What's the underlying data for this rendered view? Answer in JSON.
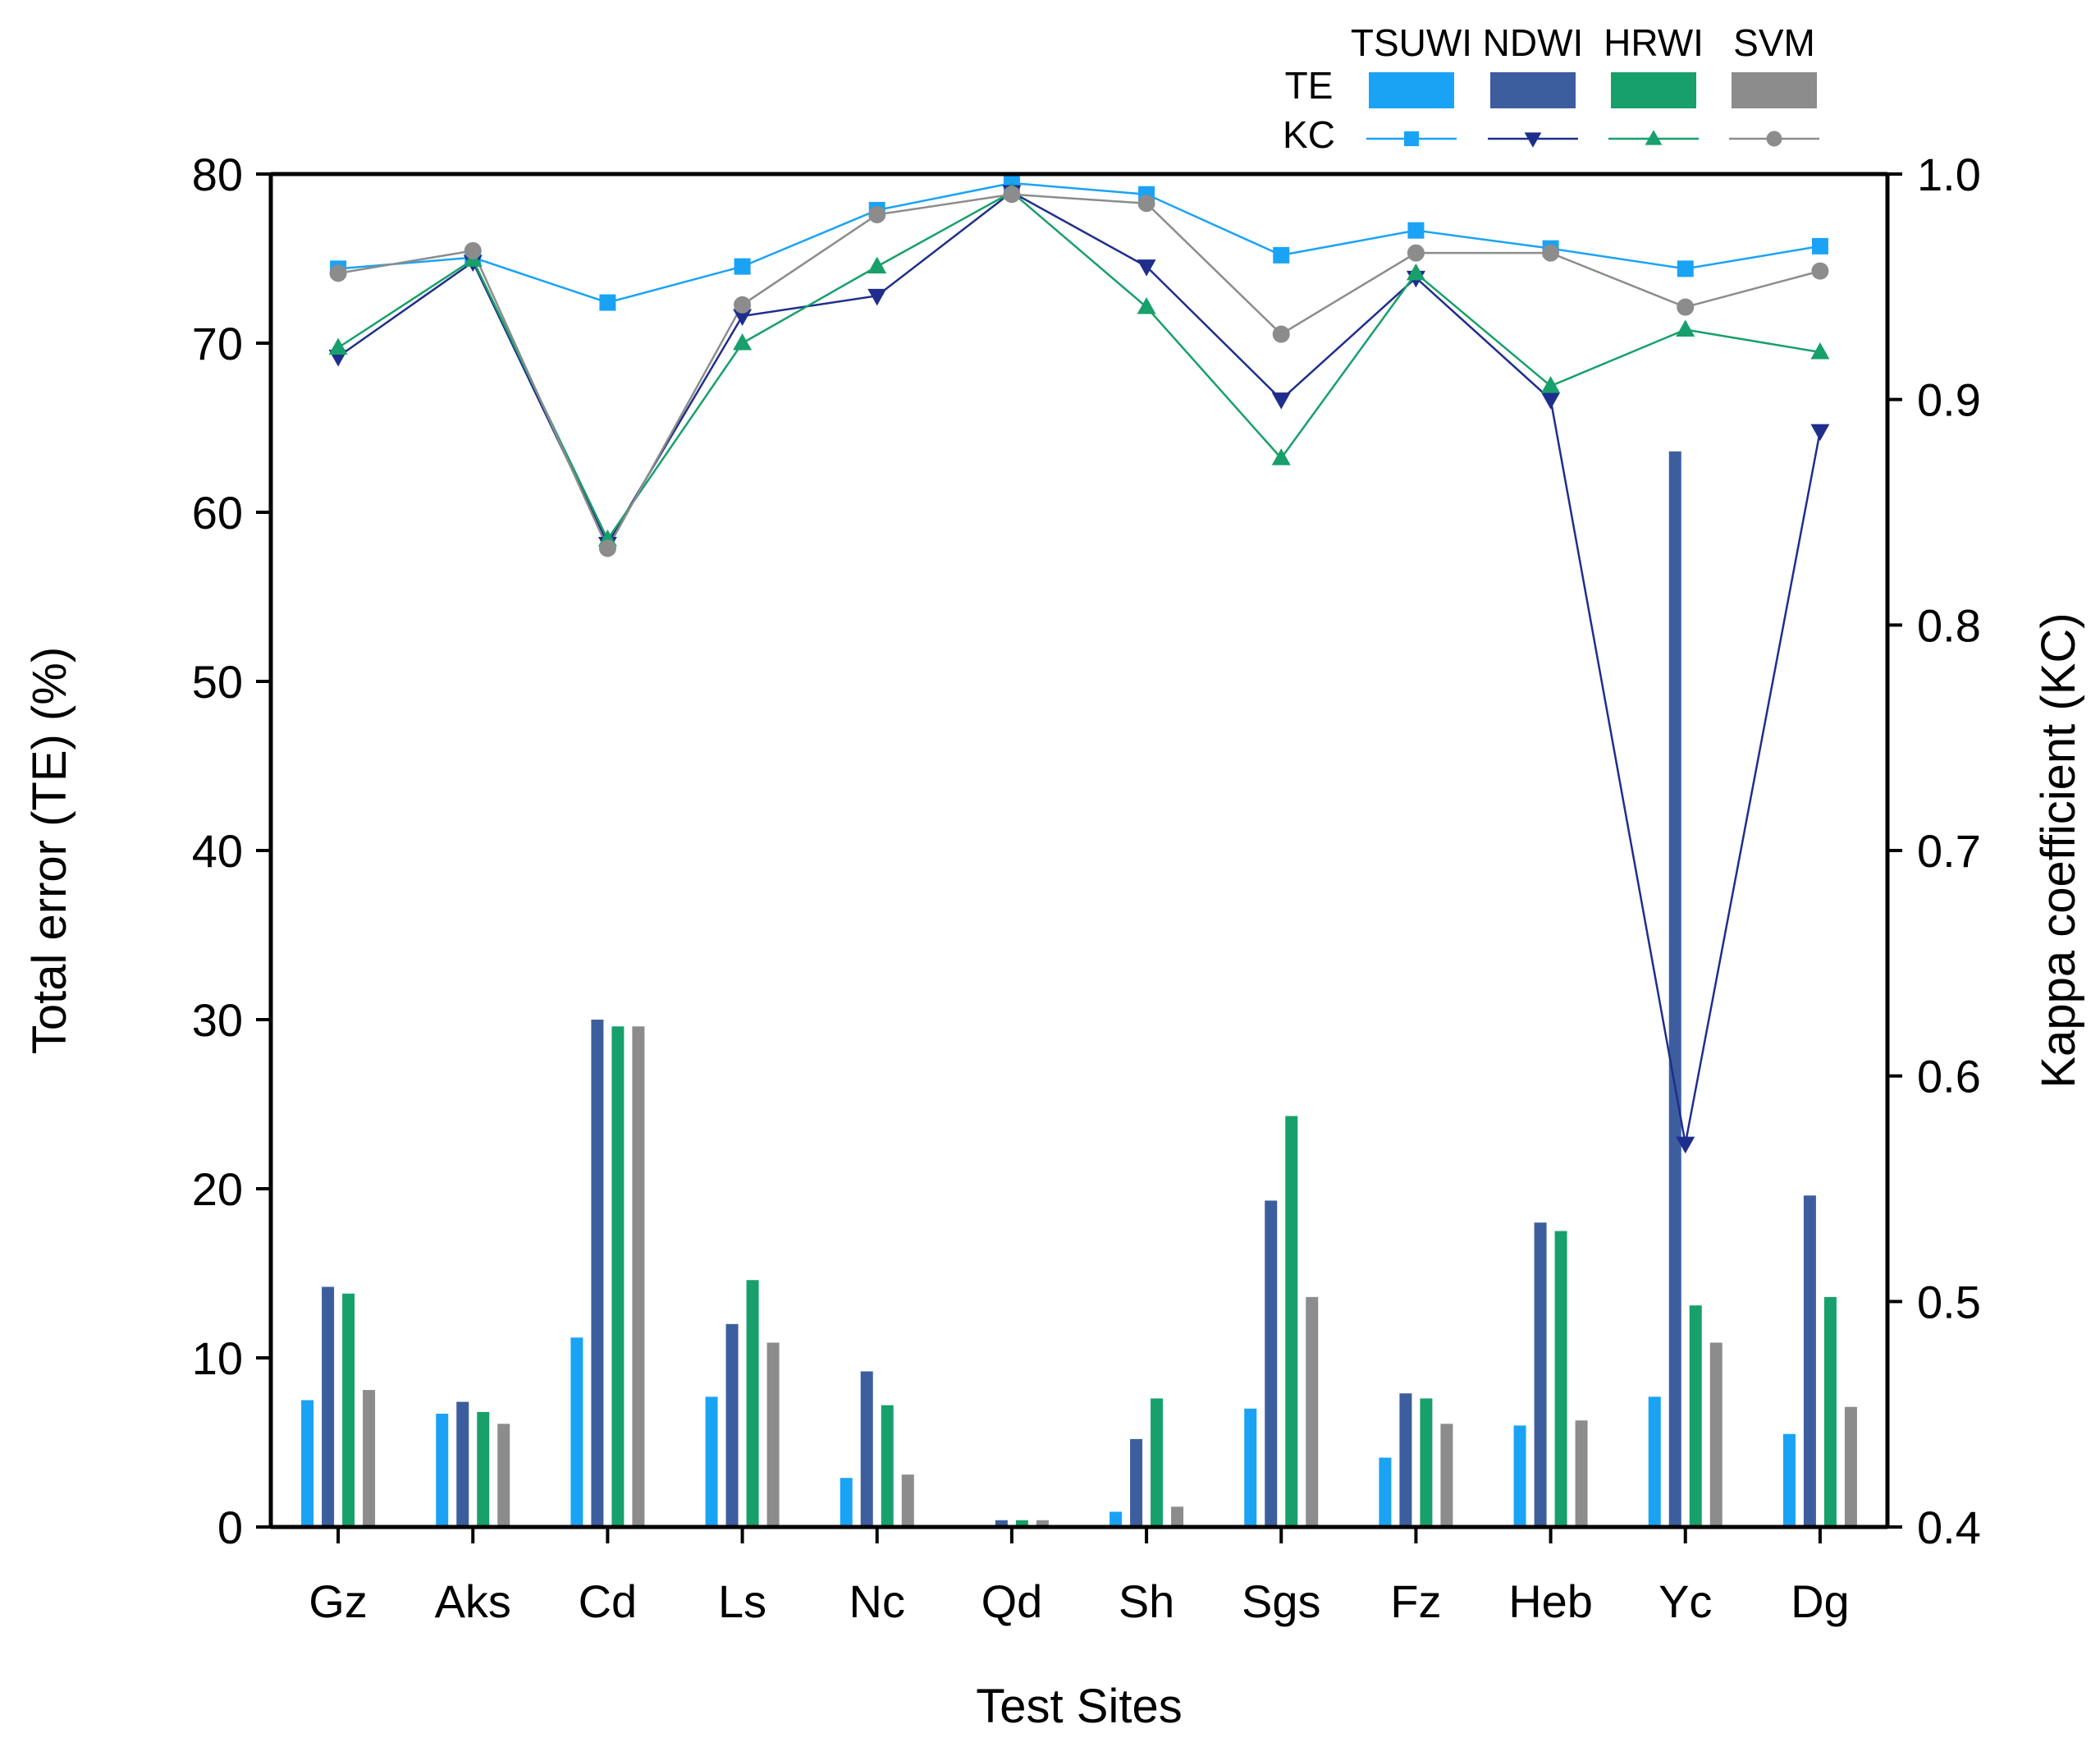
{
  "chart_data": {
    "type": "bar+line",
    "categories": [
      "Gz",
      "Aks",
      "Cd",
      "Ls",
      "Nc",
      "Qd",
      "Sh",
      "Sgs",
      "Fz",
      "Heb",
      "Yc",
      "Dg"
    ],
    "xlabel": "Test Sites",
    "ylabel": "Total error (TE) (%)",
    "y2label": "Kappa coefficient (KC)",
    "ylim": [
      0,
      80
    ],
    "y2lim": [
      0.4,
      1.0
    ],
    "yticks": [
      "0",
      "10",
      "20",
      "30",
      "40",
      "50",
      "60",
      "70",
      "80"
    ],
    "y2ticks": [
      "0.4",
      "0.5",
      "0.6",
      "0.7",
      "0.8",
      "0.9",
      "1.0"
    ],
    "legend": {
      "placement": "top-right",
      "te_label": "TE",
      "kc_label": "KC",
      "names": [
        "TSUWI",
        "NDWI",
        "HRWI",
        "SVM"
      ]
    },
    "te_series": [
      {
        "name": "TSUWI",
        "color": "#1AA3F5",
        "values": [
          7.5,
          6.7,
          11.2,
          7.7,
          2.9,
          0.0,
          0.9,
          7.0,
          4.1,
          6.0,
          7.7,
          5.5
        ]
      },
      {
        "name": "NDWI",
        "color": "#3D5E9E",
        "values": [
          14.2,
          7.4,
          30.0,
          12.0,
          9.2,
          0.4,
          5.2,
          19.3,
          7.9,
          18.0,
          63.6,
          19.6
        ]
      },
      {
        "name": "HRWI",
        "color": "#17A06B",
        "values": [
          13.8,
          6.8,
          29.6,
          14.6,
          7.2,
          0.4,
          7.6,
          24.3,
          7.6,
          17.5,
          13.1,
          13.6
        ]
      },
      {
        "name": "SVM",
        "color": "#8C8C8C",
        "values": [
          8.1,
          6.1,
          29.6,
          10.9,
          3.1,
          0.4,
          1.2,
          13.6,
          6.1,
          6.3,
          10.9,
          7.1
        ]
      }
    ],
    "kc_series": [
      {
        "name": "TSUWI",
        "color": "#1AA3F5",
        "marker": "square",
        "values": [
          0.958,
          0.963,
          0.943,
          0.959,
          0.984,
          0.996,
          0.991,
          0.964,
          0.975,
          0.967,
          0.958,
          0.968
        ]
      },
      {
        "name": "NDWI",
        "color": "#1F2E8C",
        "marker": "triangle-down",
        "values": [
          0.919,
          0.961,
          0.836,
          0.937,
          0.946,
          0.992,
          0.959,
          0.9,
          0.954,
          0.9,
          0.57,
          0.886
        ]
      },
      {
        "name": "HRWI",
        "color": "#17A06B",
        "marker": "triangle-up",
        "values": [
          0.923,
          0.962,
          0.838,
          0.925,
          0.959,
          0.992,
          0.941,
          0.874,
          0.956,
          0.906,
          0.931,
          0.921
        ]
      },
      {
        "name": "SVM",
        "color": "#8C8C8C",
        "marker": "circle",
        "values": [
          0.956,
          0.966,
          0.834,
          0.942,
          0.982,
          0.991,
          0.987,
          0.929,
          0.965,
          0.965,
          0.941,
          0.957
        ]
      }
    ]
  }
}
